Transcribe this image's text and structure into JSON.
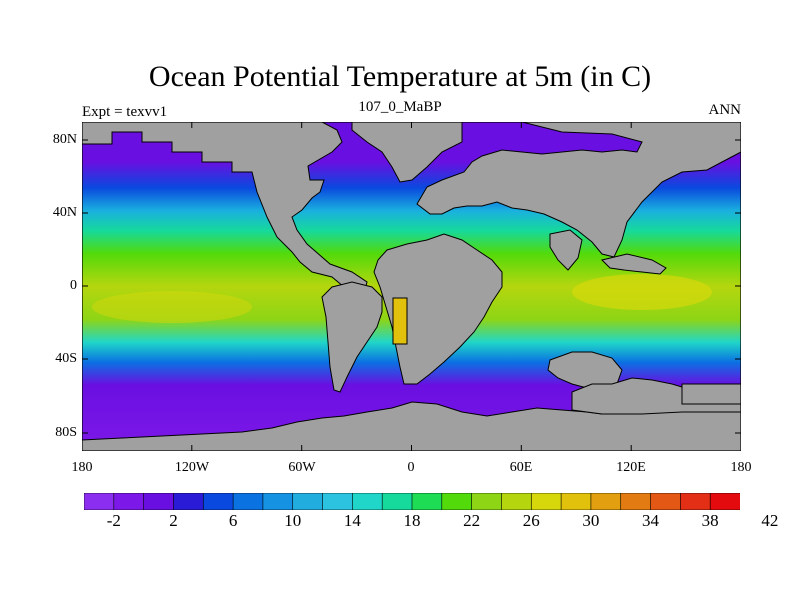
{
  "title": "Ocean Potential Temperature at 5m (in C)",
  "subtitle": "107_0_MaBP",
  "left_string": "Expt = texvv1",
  "right_string": "ANN",
  "map": {
    "projection": "cylindrical equidistant",
    "lon_range": [
      -180,
      180
    ],
    "lat_range": [
      -90,
      90
    ],
    "land_color": "#a0a0a0",
    "x_ticks": [
      "180",
      "120W",
      "60W",
      "0",
      "60E",
      "120E",
      "180"
    ],
    "y_ticks": [
      "80N",
      "40N",
      "0",
      "40S",
      "80S"
    ]
  },
  "colorbar": {
    "colors": [
      "#8c2eef",
      "#7d19e8",
      "#6a0fe1",
      "#2a1cd6",
      "#0a49df",
      "#0b72e2",
      "#1692e2",
      "#22addf",
      "#2bc3df",
      "#20d6c8",
      "#16d99c",
      "#1edd55",
      "#52da0b",
      "#8ed515",
      "#b5d60e",
      "#d6d80c",
      "#e2c10d",
      "#e2a010",
      "#e27c12",
      "#e25814",
      "#e22f15",
      "#e30b0d"
    ],
    "labels": [
      "-2",
      "2",
      "6",
      "10",
      "14",
      "18",
      "22",
      "26",
      "30",
      "34",
      "38",
      "42"
    ]
  }
}
